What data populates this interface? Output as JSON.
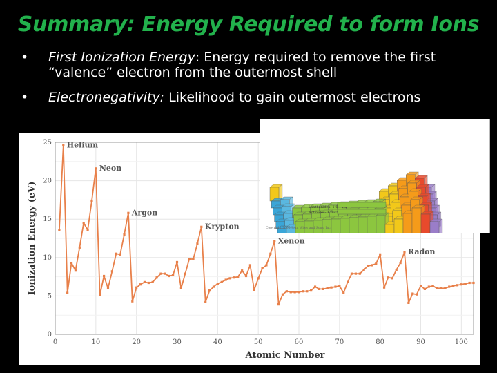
{
  "slide": {
    "title": "Summary: Energy Required to form Ions",
    "bullets": [
      {
        "term": "First Ionization Energy",
        "sep": ":",
        "text": " Energy required to remove the first “valence” electron from the outermost shell"
      },
      {
        "term": "Electronegativity:",
        "sep": "",
        "text": " Likelihood to gain outermost electrons"
      }
    ]
  },
  "chart_data": {
    "type": "line",
    "xlabel": "Atomic Number",
    "ylabel": "Ionization Energy (eV)",
    "xlim": [
      0,
      103
    ],
    "ylim": [
      0,
      25
    ],
    "xticks": [
      0,
      10,
      20,
      30,
      40,
      50,
      60,
      70,
      80,
      90,
      100
    ],
    "yticks": [
      0,
      5,
      10,
      15,
      20,
      25
    ],
    "color": "#e8804a",
    "series": [
      {
        "x": [
          1,
          2,
          3,
          4,
          5,
          6,
          7,
          8,
          9,
          10,
          11,
          12,
          13,
          14,
          15,
          16,
          17,
          18,
          19,
          20,
          21,
          22,
          23,
          24,
          25,
          26,
          27,
          28,
          29,
          30,
          31,
          32,
          33,
          34,
          35,
          36,
          37,
          38,
          39,
          40,
          41,
          42,
          43,
          44,
          45,
          46,
          47,
          48,
          49,
          50,
          51,
          52,
          53,
          54,
          55,
          56,
          57,
          58,
          59,
          60,
          61,
          62,
          63,
          64,
          65,
          66,
          67,
          68,
          69,
          70,
          71,
          72,
          73,
          74,
          75,
          76,
          77,
          78,
          79,
          80,
          81,
          82,
          83,
          84,
          85,
          86,
          87,
          88,
          89,
          90,
          91,
          92,
          93,
          94,
          95,
          96,
          97,
          98,
          99,
          100,
          101,
          102,
          103
        ],
        "y": [
          13.6,
          24.6,
          5.4,
          9.3,
          8.3,
          11.3,
          14.5,
          13.6,
          17.4,
          21.6,
          5.1,
          7.6,
          6.0,
          8.2,
          10.5,
          10.4,
          13.0,
          15.8,
          4.3,
          6.1,
          6.5,
          6.8,
          6.7,
          6.8,
          7.4,
          7.9,
          7.9,
          7.6,
          7.7,
          9.4,
          6.0,
          7.9,
          9.8,
          9.8,
          11.8,
          14.0,
          4.2,
          5.7,
          6.2,
          6.6,
          6.8,
          7.1,
          7.3,
          7.4,
          7.5,
          8.3,
          7.6,
          9.0,
          5.8,
          7.3,
          8.6,
          9.0,
          10.5,
          12.1,
          3.9,
          5.2,
          5.6,
          5.5,
          5.5,
          5.5,
          5.6,
          5.6,
          5.7,
          6.2,
          5.9,
          5.9,
          6.0,
          6.1,
          6.2,
          6.3,
          5.4,
          6.8,
          7.9,
          7.9,
          7.9,
          8.4,
          8.9,
          9.0,
          9.2,
          10.4,
          6.1,
          7.4,
          7.3,
          8.4,
          9.3,
          10.7,
          4.1,
          5.3,
          5.2,
          6.3,
          5.9,
          6.2,
          6.3,
          6.0,
          6.0,
          6.0,
          6.2,
          6.3,
          6.4,
          6.5,
          6.6,
          6.7,
          6.7
        ]
      }
    ],
    "annotations": [
      {
        "label": "Helium",
        "x": 2
      },
      {
        "label": "Neon",
        "x": 10
      },
      {
        "label": "Argon",
        "x": 18
      },
      {
        "label": "Krypton",
        "x": 36
      },
      {
        "label": "Xenon",
        "x": 54
      },
      {
        "label": "Radon",
        "x": 86
      }
    ]
  },
  "inset": {
    "lanthanides": "Lanthanides: 1.0 – 1.2",
    "actinides": "Actinides: 1.0 – 1.2",
    "copyright": "Copyright 2005 John Wiley and Sons, Inc."
  }
}
